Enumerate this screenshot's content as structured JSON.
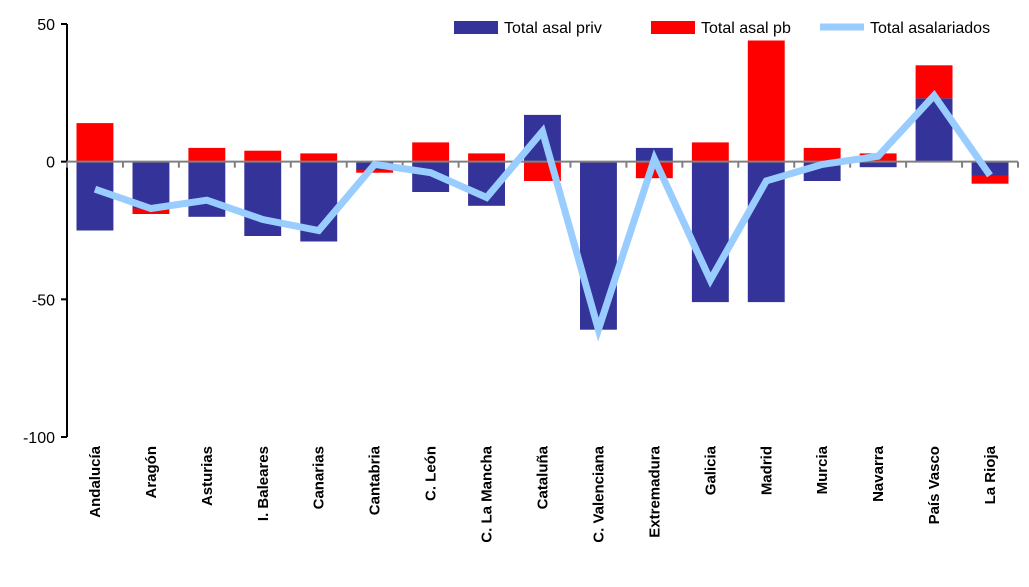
{
  "chart_data": {
    "type": "bar",
    "categories": [
      "Andalucía",
      "Aragón",
      "Asturias",
      "I. Baleares",
      "Canarias",
      "Cantabria",
      "C. León",
      "C. La Mancha",
      "Cataluña",
      "C. Valenciana",
      "Extremadura",
      "Galicia",
      "Madrid",
      "Murcia",
      "Navarra",
      "País Vasco",
      "La Rioja"
    ],
    "series": [
      {
        "name": "Total asal priv",
        "type": "bar",
        "color": "#333399",
        "values": [
          -25,
          -17,
          -20,
          -27,
          -29,
          -3,
          -11,
          -16,
          17,
          -61,
          5,
          -51,
          -51,
          -7,
          -2,
          23,
          -5
        ]
      },
      {
        "name": "Total asal pb",
        "type": "bar",
        "color": "#ff0000",
        "values": [
          14,
          -2,
          5,
          4,
          3,
          -1,
          7,
          3,
          -7,
          0,
          -6,
          7,
          44,
          5,
          3,
          12,
          -3
        ]
      },
      {
        "name": "Total asalariados",
        "type": "line",
        "color": "#99ccff",
        "values": [
          -10,
          -17,
          -14,
          -21,
          -25,
          -1,
          -4,
          -13,
          11,
          -61,
          1,
          -43,
          -7,
          -1,
          2,
          24,
          -5
        ]
      }
    ],
    "yticks": [
      50,
      0,
      -50,
      -100
    ],
    "ylim": [
      -100,
      50
    ],
    "legend_position": "top",
    "grid": false
  }
}
